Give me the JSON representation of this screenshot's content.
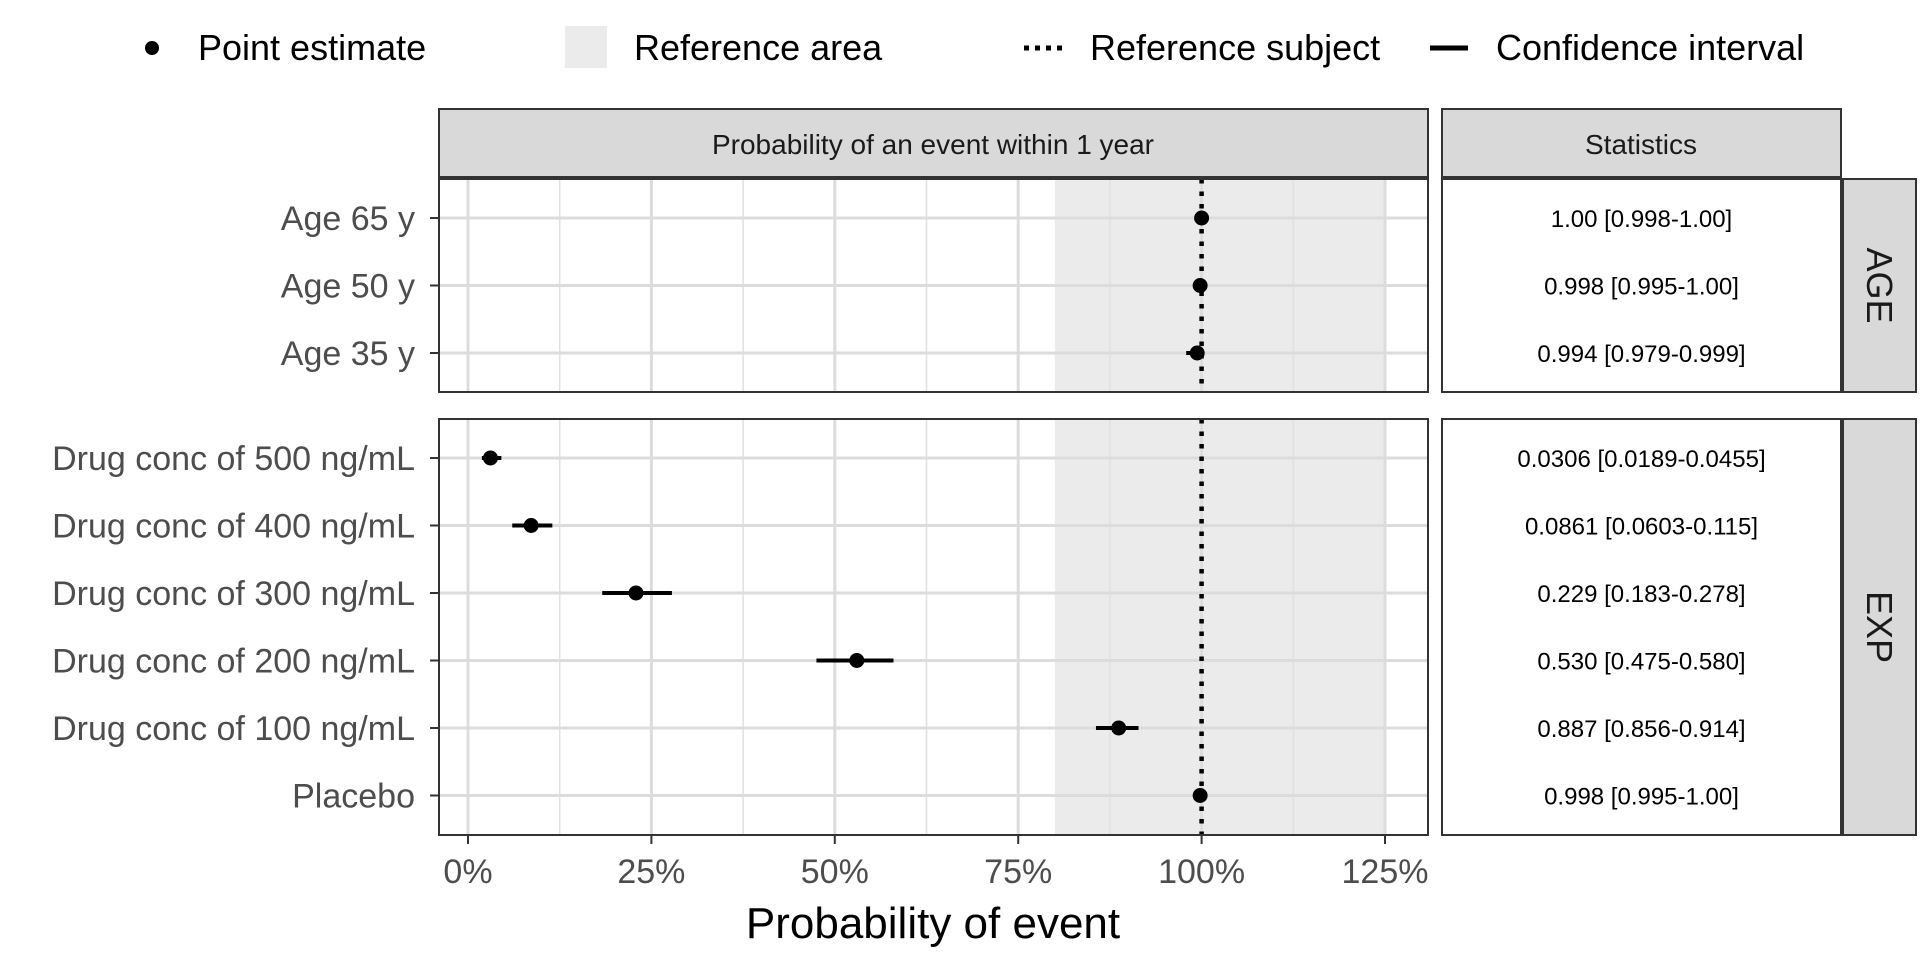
{
  "chart_data": {
    "type": "forest",
    "xlabel": "Probability of event",
    "xlim": [
      -0.04,
      1.3
    ],
    "xticks": [
      0,
      0.25,
      0.5,
      0.75,
      1.0,
      1.25
    ],
    "xtick_labels": [
      "0%",
      "25%",
      "50%",
      "75%",
      "100%",
      "125%"
    ],
    "reference_area": [
      0.8,
      1.25
    ],
    "reference_line": 1.0,
    "grid": true,
    "legend": {
      "position": "top",
      "entries": [
        "Point estimate",
        "Reference area",
        "Reference subject",
        "Confidence interval"
      ]
    },
    "strip_top": "Probability of an event within 1 year",
    "stats_header": "Statistics",
    "panels": [
      {
        "name": "AGE",
        "rows": [
          {
            "label": "Age 65 y",
            "estimate": 1.0,
            "lower": 0.998,
            "upper": 1.0,
            "stat": "1.00 [0.998-1.00]"
          },
          {
            "label": "Age 50 y",
            "estimate": 0.998,
            "lower": 0.995,
            "upper": 1.0,
            "stat": "0.998 [0.995-1.00]"
          },
          {
            "label": "Age 35 y",
            "estimate": 0.994,
            "lower": 0.979,
            "upper": 0.999,
            "stat": "0.994 [0.979-0.999]"
          }
        ]
      },
      {
        "name": "EXP",
        "rows": [
          {
            "label": "Drug conc of 500 ng/mL",
            "estimate": 0.0306,
            "lower": 0.0189,
            "upper": 0.0455,
            "stat": "0.0306 [0.0189-0.0455]"
          },
          {
            "label": "Drug conc of 400 ng/mL",
            "estimate": 0.0861,
            "lower": 0.0603,
            "upper": 0.115,
            "stat": "0.0861 [0.0603-0.115]"
          },
          {
            "label": "Drug conc of 300 ng/mL",
            "estimate": 0.229,
            "lower": 0.183,
            "upper": 0.278,
            "stat": "0.229 [0.183-0.278]"
          },
          {
            "label": "Drug conc of 200 ng/mL",
            "estimate": 0.53,
            "lower": 0.475,
            "upper": 0.58,
            "stat": "0.530 [0.475-0.580]"
          },
          {
            "label": "Drug conc of 100 ng/mL",
            "estimate": 0.887,
            "lower": 0.856,
            "upper": 0.914,
            "stat": "0.887 [0.856-0.914]"
          },
          {
            "label": "Placebo",
            "estimate": 0.998,
            "lower": 0.995,
            "upper": 1.0,
            "stat": "0.998 [0.995-1.00]"
          }
        ]
      }
    ]
  }
}
